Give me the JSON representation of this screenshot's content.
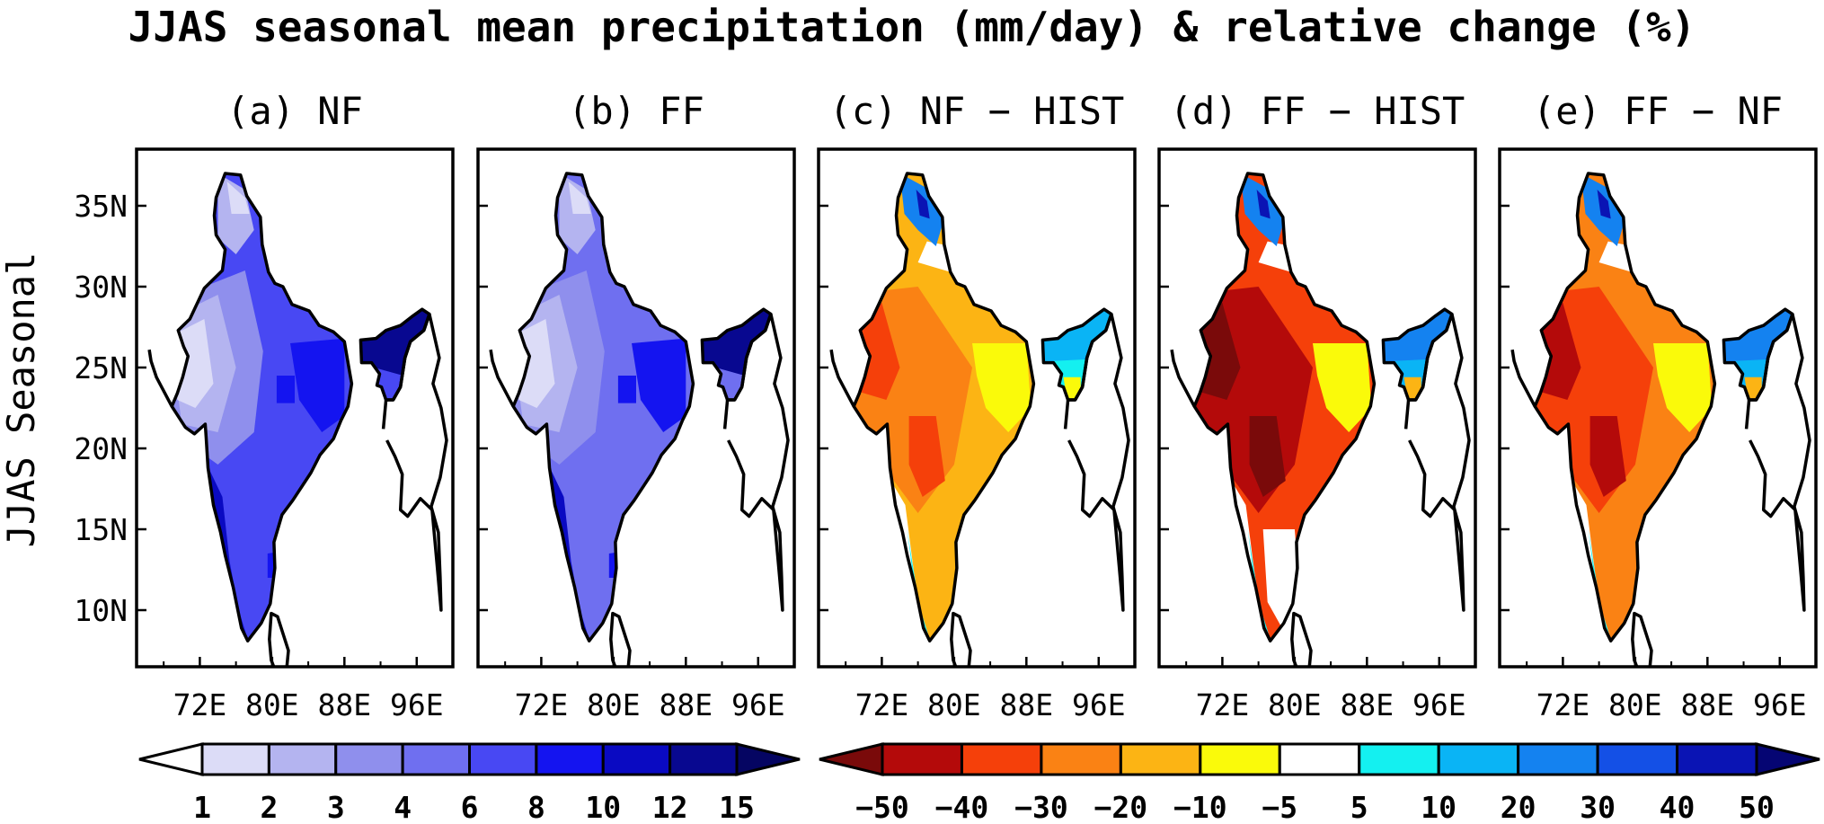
{
  "figure_title": "JJAS seasonal mean precipitation (mm/day) & relative change (%)",
  "row_label": "JJAS Seasonal",
  "chart_data": {
    "type": "heatmap",
    "title": "JJAS seasonal mean precipitation (mm/day) & relative change (%)",
    "ylabel": "JJAS Seasonal",
    "lon_ticks": [
      "72E",
      "80E",
      "88E",
      "96E"
    ],
    "lon_values": [
      72,
      80,
      88,
      96
    ],
    "lat_ticks": [
      "35N",
      "30N",
      "25N",
      "20N",
      "15N",
      "10N"
    ],
    "lat_values": [
      35,
      30,
      25,
      20,
      15,
      10
    ],
    "xlim": [
      65,
      100
    ],
    "ylim": [
      6.5,
      38.5
    ],
    "panels": [
      {
        "label": "(a) NF",
        "variable": "mean precipitation (mm/day)",
        "colorbar": "precip"
      },
      {
        "label": "(b) FF",
        "variable": "mean precipitation (mm/day)",
        "colorbar": "precip"
      },
      {
        "label": "(c) NF − HIST",
        "variable": "relative change (%)",
        "colorbar": "change"
      },
      {
        "label": "(d) FF − HIST",
        "variable": "relative change (%)",
        "colorbar": "change"
      },
      {
        "label": "(e) FF − NF",
        "variable": "relative change (%)",
        "colorbar": "change"
      }
    ],
    "colorbars": {
      "precip": {
        "levels": [
          "1",
          "2",
          "3",
          "4",
          "6",
          "8",
          "10",
          "12",
          "15"
        ],
        "colors": [
          "#ffffff",
          "#dcdcf7",
          "#b4b4f0",
          "#8f8fed",
          "#6f6ff0",
          "#4848f3",
          "#1414f0",
          "#0a0ac2",
          "#080890",
          "#050562"
        ]
      },
      "change": {
        "levels": [
          "−50",
          "−40",
          "−30",
          "−20",
          "−10",
          "−5",
          "5",
          "10",
          "20",
          "30",
          "40",
          "50"
        ],
        "colors": [
          "#7a0a0a",
          "#b40a0a",
          "#f5400a",
          "#fa8214",
          "#fcb414",
          "#fafa0a",
          "#ffffff",
          "#14f0f0",
          "#0ab4f5",
          "#1482f0",
          "#1450e6",
          "#0a14b4",
          "#050573"
        ]
      }
    }
  }
}
